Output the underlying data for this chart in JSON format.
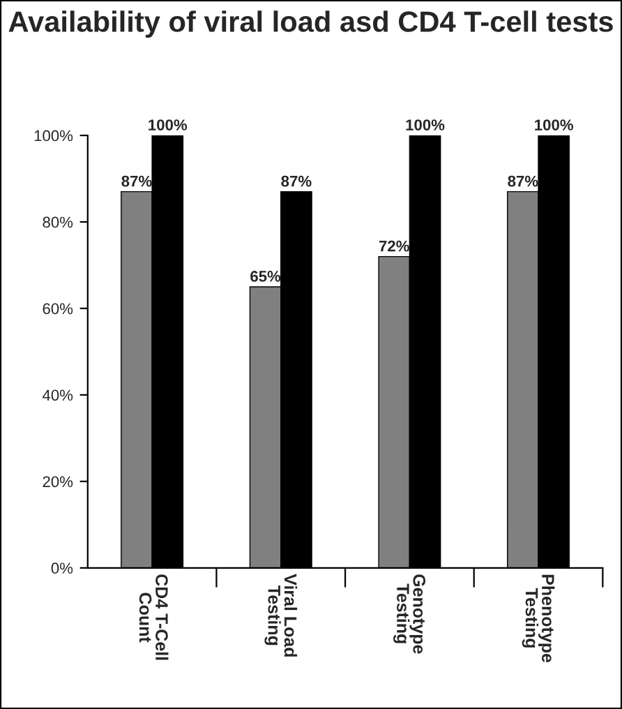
{
  "chart_data": {
    "type": "bar",
    "title": "Availability of viral load asd CD4 T-cell tests",
    "categories": [
      "CD4 T-Cell\nCount",
      "Viral Load\nTesting",
      "Genotype\nTesting",
      "Phenotype\nTesting"
    ],
    "series": [
      {
        "color": "#808080",
        "values": [
          87,
          65,
          72,
          87
        ]
      },
      {
        "color": "#000000",
        "values": [
          100,
          87,
          100,
          100
        ]
      }
    ],
    "ylim": [
      0,
      100
    ],
    "yticks": [
      {
        "value": 0,
        "label": "0%"
      },
      {
        "value": 20,
        "label": "20%"
      },
      {
        "value": 40,
        "label": "40%"
      },
      {
        "value": 60,
        "label": "60%"
      },
      {
        "value": 80,
        "label": "80%"
      },
      {
        "value": 100,
        "label": "100%"
      }
    ],
    "value_labels": [
      [
        "87%",
        "65%",
        "72%",
        "87%"
      ],
      [
        "100%",
        "87%",
        "100%",
        "100%"
      ]
    ],
    "grid": false,
    "legend": false
  }
}
